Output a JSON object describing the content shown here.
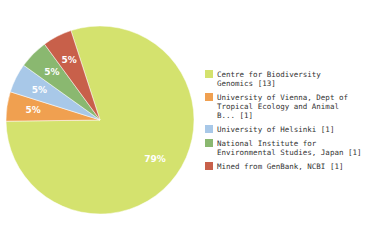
{
  "chart_data": {
    "type": "pie",
    "categories": [
      "Centre for Biodiversity\nGenomics [13]",
      "University of Vienna, Dept of\nTropical Ecology and Animal\nB... [1]",
      "University of Helsinki [1]",
      "National Institute for\nEnvironmental Studies, Japan [1]",
      "Mined from GenBank, NCBI [1]"
    ],
    "values": [
      79,
      5,
      5,
      5,
      5
    ],
    "value_labels": [
      "79%",
      "5%",
      "5%",
      "5%",
      "5%"
    ],
    "colors": [
      "#d4e26e",
      "#f0a050",
      "#a8c8e8",
      "#8ab870",
      "#c8604a"
    ],
    "data_labels": true,
    "legend": "right"
  }
}
